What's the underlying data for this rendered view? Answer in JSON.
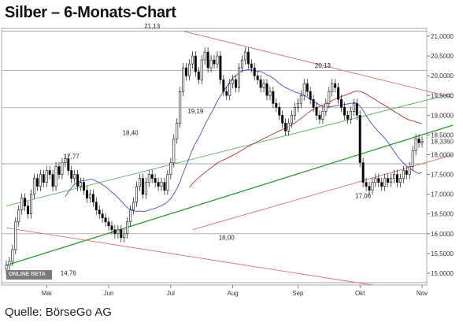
{
  "header": {
    "title": "Silber – 6-Monats-Chart"
  },
  "footer": {
    "source": "Quelle: BörseGo AG"
  },
  "logo": {
    "text": "ONLINE BETA"
  },
  "colors": {
    "up": "#ffffff",
    "down": "#000000",
    "ma_short": "#4a4ae0",
    "ma_long": "#c03030",
    "trend_green": "#2a9a2a",
    "trend_red": "#e07070",
    "trend_light_green": "#60b060",
    "grid": "#d8d8d8",
    "level": "#888888"
  },
  "chart_data": {
    "type": "candlestick",
    "title": "Silber – 6-Monats-Chart",
    "ylim": [
      14.7,
      21.2
    ],
    "y_ticks": [
      "21,0000",
      "20,5000",
      "20,0000",
      "19,5000",
      "19,0000",
      "18,5000",
      "18,0000",
      "17,5000",
      "17,0000",
      "16,5000",
      "16,0000",
      "15,5000",
      "15,0000"
    ],
    "y_tick_values": [
      21.0,
      20.5,
      20.0,
      19.5,
      19.0,
      18.5,
      18.0,
      17.5,
      17.0,
      16.5,
      16.0,
      15.5,
      15.0
    ],
    "x_ticks": [
      {
        "label": "Mai",
        "i": 13
      },
      {
        "label": "Jun",
        "i": 33
      },
      {
        "label": "Jul",
        "i": 53
      },
      {
        "label": "Aug",
        "i": 73
      },
      {
        "label": "Sep",
        "i": 94
      },
      {
        "label": "Okt",
        "i": 114
      },
      {
        "label": "Nov",
        "i": 134
      }
    ],
    "last_value_label": "18,3360",
    "annotations": [
      {
        "text": "21,13",
        "i": 47,
        "v": 21.2
      },
      {
        "text": "20,13",
        "i": 102,
        "v": 20.2
      },
      {
        "text": "19,19",
        "i": 61,
        "v": 19.05
      },
      {
        "text": "18,40",
        "i": 40,
        "v": 18.5
      },
      {
        "text": "17,77",
        "i": 21,
        "v": 17.9
      },
      {
        "text": "17,06",
        "i": 115,
        "v": 16.9
      },
      {
        "text": "16,00",
        "i": 71,
        "v": 15.85
      },
      {
        "text": "14,76",
        "i": 20,
        "v": 14.95
      }
    ],
    "levels": [
      21.13,
      20.13,
      19.19,
      17.77,
      16.0,
      14.76
    ],
    "trendlines": [
      {
        "name": "trend_green",
        "from": {
          "i": 0,
          "v": 15.2
        },
        "to": {
          "i": 144,
          "v": 18.75
        }
      },
      {
        "name": "trend_light_green",
        "from": {
          "i": 0,
          "v": 16.7
        },
        "to": {
          "i": 144,
          "v": 19.55
        }
      },
      {
        "name": "trend_red",
        "from": {
          "i": 0,
          "v": 16.15
        },
        "to": {
          "i": 118,
          "v": 14.7
        }
      },
      {
        "name": "trend_red",
        "from": {
          "i": 57,
          "v": 21.13
        },
        "to": {
          "i": 144,
          "v": 19.45
        }
      },
      {
        "name": "trend_red",
        "from": {
          "i": 60,
          "v": 16.1
        },
        "to": {
          "i": 144,
          "v": 18.0
        }
      }
    ],
    "close": [
      15.2,
      15.3,
      15.6,
      16.3,
      16.6,
      16.9,
      16.7,
      16.5,
      17.0,
      17.4,
      17.2,
      17.5,
      17.3,
      17.6,
      17.5,
      17.2,
      17.7,
      17.5,
      17.8,
      17.9,
      17.6,
      17.4,
      17.5,
      17.2,
      17.3,
      17.1,
      16.9,
      17.0,
      16.8,
      16.6,
      16.5,
      16.4,
      16.3,
      16.2,
      16.1,
      16.0,
      16.1,
      15.9,
      16.0,
      16.3,
      16.6,
      16.8,
      17.2,
      17.4,
      17.0,
      17.3,
      17.5,
      17.4,
      17.3,
      17.2,
      17.3,
      17.1,
      17.5,
      17.8,
      18.4,
      18.8,
      19.6,
      20.2,
      20.0,
      20.3,
      20.5,
      20.1,
      19.9,
      20.4,
      20.6,
      20.2,
      20.4,
      20.3,
      20.5,
      19.9,
      19.6,
      19.5,
      19.8,
      19.9,
      19.7,
      20.2,
      20.4,
      20.6,
      20.3,
      20.2,
      20.0,
      19.9,
      19.7,
      19.8,
      19.5,
      19.6,
      19.3,
      19.2,
      19.0,
      18.8,
      18.6,
      18.8,
      19.0,
      19.2,
      19.3,
      19.5,
      19.8,
      19.6,
      19.4,
      19.2,
      19.0,
      18.9,
      19.1,
      19.3,
      19.6,
      19.8,
      19.7,
      19.4,
      19.2,
      19.0,
      18.9,
      19.1,
      19.3,
      19.0,
      17.8,
      17.3,
      17.2,
      17.1,
      17.3,
      17.4,
      17.3,
      17.2,
      17.4,
      17.3,
      17.4,
      17.5,
      17.3,
      17.4,
      17.6,
      17.5,
      17.7,
      18.1,
      18.4,
      18.3,
      18.34
    ]
  }
}
